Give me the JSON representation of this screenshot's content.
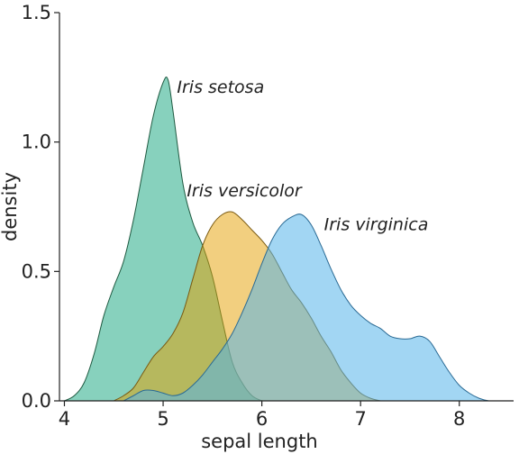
{
  "chart_data": {
    "type": "area",
    "title": "",
    "xlabel": "sepal length",
    "ylabel": "density",
    "xlim": [
      3.95,
      8.55
    ],
    "ylim": [
      0,
      1.5
    ],
    "xticks": [
      4,
      5,
      6,
      7,
      8
    ],
    "yticks": [
      0.0,
      0.5,
      1.0,
      1.5
    ],
    "xtick_labels": [
      "4",
      "5",
      "6",
      "7",
      "8"
    ],
    "ytick_labels": [
      "0.0",
      "0.5",
      "1.0",
      "1.5"
    ],
    "grid": false,
    "legend": "direct labels next to curves",
    "series": [
      {
        "name": "Iris setosa",
        "color": "#009E73",
        "opacity": 0.47,
        "label_anchor": [
          5.14,
          1.19
        ],
        "x": [
          4.0,
          4.1,
          4.2,
          4.3,
          4.4,
          4.5,
          4.6,
          4.7,
          4.8,
          4.9,
          5.0,
          5.05,
          5.1,
          5.2,
          5.3,
          5.4,
          5.5,
          5.6,
          5.7,
          5.8,
          5.9,
          6.0
        ],
        "y": [
          0.0,
          0.02,
          0.07,
          0.18,
          0.33,
          0.44,
          0.54,
          0.7,
          0.9,
          1.1,
          1.23,
          1.24,
          1.12,
          0.84,
          0.69,
          0.6,
          0.48,
          0.31,
          0.15,
          0.07,
          0.02,
          0.0
        ]
      },
      {
        "name": "Iris versicolor",
        "color": "#E69F00",
        "opacity": 0.5,
        "label_anchor": [
          5.24,
          0.79
        ],
        "x": [
          4.5,
          4.6,
          4.7,
          4.8,
          4.9,
          5.0,
          5.1,
          5.2,
          5.3,
          5.4,
          5.5,
          5.6,
          5.7,
          5.8,
          5.9,
          6.0,
          6.1,
          6.2,
          6.3,
          6.4,
          6.5,
          6.6,
          6.7,
          6.8,
          6.9,
          7.0,
          7.1,
          7.2
        ],
        "y": [
          0.0,
          0.02,
          0.05,
          0.11,
          0.17,
          0.21,
          0.26,
          0.34,
          0.47,
          0.6,
          0.68,
          0.72,
          0.73,
          0.7,
          0.66,
          0.62,
          0.57,
          0.5,
          0.43,
          0.38,
          0.32,
          0.25,
          0.19,
          0.12,
          0.07,
          0.03,
          0.01,
          0.0
        ]
      },
      {
        "name": "Iris virginica",
        "color": "#56B4E9",
        "opacity": 0.55,
        "label_anchor": [
          6.63,
          0.66
        ],
        "x": [
          4.6,
          4.7,
          4.8,
          4.9,
          5.0,
          5.1,
          5.2,
          5.3,
          5.4,
          5.5,
          5.6,
          5.7,
          5.8,
          5.9,
          6.0,
          6.1,
          6.2,
          6.3,
          6.4,
          6.5,
          6.6,
          6.7,
          6.8,
          6.9,
          7.0,
          7.1,
          7.2,
          7.3,
          7.4,
          7.5,
          7.6,
          7.7,
          7.8,
          7.9,
          8.0,
          8.1,
          8.2,
          8.3,
          8.4
        ],
        "y": [
          0.0,
          0.02,
          0.04,
          0.04,
          0.03,
          0.02,
          0.03,
          0.06,
          0.1,
          0.15,
          0.2,
          0.26,
          0.34,
          0.43,
          0.53,
          0.62,
          0.68,
          0.71,
          0.72,
          0.68,
          0.6,
          0.51,
          0.43,
          0.37,
          0.33,
          0.3,
          0.28,
          0.25,
          0.24,
          0.24,
          0.25,
          0.23,
          0.17,
          0.11,
          0.06,
          0.03,
          0.01,
          0.0,
          0.0
        ]
      }
    ]
  }
}
